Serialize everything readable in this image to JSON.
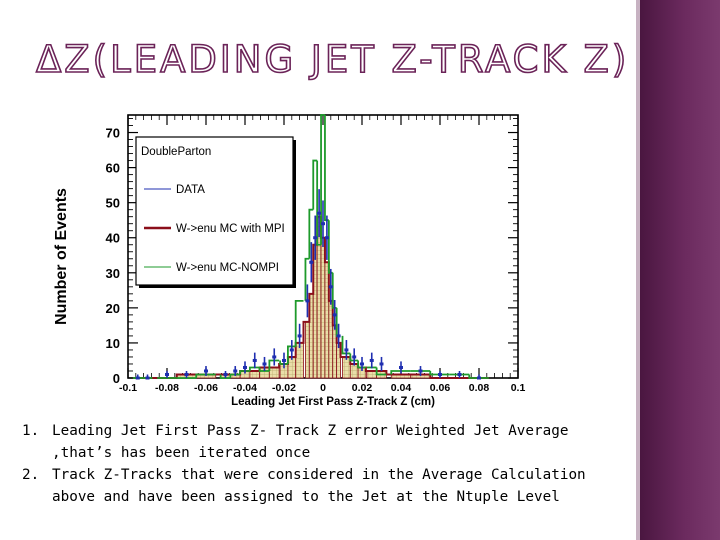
{
  "slide": {
    "title": "ΔZ(LEADING JET Z-TRACK Z)",
    "bullets": [
      {
        "num": "1.",
        "text": "Leading Jet First Pass Z- Track Z error Weighted Jet Average ,that’s has been iterated once"
      },
      {
        "num": "2.",
        "text": "Track Z-Tracks that were considered in the Average Calculation above and have been assigned to the Jet at the Ntuple Level"
      }
    ],
    "colors": {
      "title_outline": "#6b2358",
      "side_band": "#5c1f50"
    }
  },
  "chart_data": {
    "type": "histogram",
    "xlabel": "Leading Jet First Pass Z-Track Z (cm)",
    "ylabel": "Number of Events",
    "xlim": [
      -0.1,
      0.1
    ],
    "ylim": [
      0,
      75
    ],
    "xticks": [
      "-0.1",
      "-0.08",
      "-0.06",
      "-0.04",
      "-0.02",
      "0",
      "0.02",
      "0.04",
      "0.06",
      "0.08",
      "0.1"
    ],
    "yticks": [
      "0",
      "10",
      "20",
      "30",
      "40",
      "50",
      "60",
      "70"
    ],
    "legend": {
      "placement": "top-left",
      "title": "DoubleParton",
      "entries": [
        "DATA",
        "W->enu MC with MPI",
        "W->enu MC-NOMPI"
      ]
    },
    "series": [
      {
        "name": "DATA",
        "color": "#1f2fb0",
        "style": "points-with-error-bars",
        "x": [
          -0.095,
          -0.09,
          -0.08,
          -0.07,
          -0.06,
          -0.05,
          -0.045,
          -0.04,
          -0.035,
          -0.03,
          -0.025,
          -0.02,
          -0.016,
          -0.012,
          -0.008,
          -0.006,
          -0.004,
          -0.002,
          0.0,
          0.002,
          0.004,
          0.006,
          0.008,
          0.012,
          0.016,
          0.02,
          0.025,
          0.03,
          0.04,
          0.05,
          0.06,
          0.07,
          0.08
        ],
        "y": [
          0,
          0,
          1,
          1,
          2,
          1,
          2,
          3,
          5,
          4,
          6,
          5,
          8,
          12,
          22,
          33,
          40,
          47,
          44,
          40,
          26,
          18,
          12,
          8,
          6,
          4,
          5,
          4,
          3,
          2,
          1,
          1,
          0
        ]
      },
      {
        "name": "W->enu MC with MPI",
        "color": "#8b0f1a",
        "style": "filled-hatched-histogram",
        "fill": "#e9dea8",
        "x": [
          -0.095,
          -0.09,
          -0.08,
          -0.07,
          -0.06,
          -0.05,
          -0.045,
          -0.04,
          -0.035,
          -0.03,
          -0.025,
          -0.02,
          -0.016,
          -0.012,
          -0.008,
          -0.006,
          -0.004,
          -0.002,
          0.0,
          0.002,
          0.004,
          0.006,
          0.008,
          0.012,
          0.016,
          0.02,
          0.025,
          0.03,
          0.04,
          0.05,
          0.06,
          0.07,
          0.08
        ],
        "y": [
          0,
          0,
          0,
          1,
          1,
          1,
          1,
          2,
          2,
          3,
          3,
          4,
          6,
          10,
          16,
          24,
          38,
          46,
          40,
          33,
          22,
          15,
          10,
          6,
          4,
          3,
          2,
          2,
          1,
          1,
          0,
          0,
          0
        ]
      },
      {
        "name": "W->enu MC-NOMPI",
        "color": "#1e9a2b",
        "style": "step-histogram",
        "x": [
          -0.095,
          -0.09,
          -0.08,
          -0.07,
          -0.06,
          -0.05,
          -0.045,
          -0.04,
          -0.035,
          -0.03,
          -0.025,
          -0.02,
          -0.016,
          -0.012,
          -0.008,
          -0.006,
          -0.004,
          -0.002,
          0.0,
          0.002,
          0.004,
          0.006,
          0.008,
          0.012,
          0.016,
          0.02,
          0.025,
          0.03,
          0.04,
          0.05,
          0.06,
          0.07,
          0.08
        ],
        "y": [
          0,
          0,
          0,
          0,
          1,
          0,
          1,
          2,
          3,
          2,
          5,
          4,
          9,
          22,
          34,
          48,
          62,
          38,
          75,
          45,
          30,
          20,
          12,
          7,
          5,
          3,
          3,
          1,
          2,
          2,
          1,
          1,
          0
        ]
      }
    ],
    "grid": false
  }
}
